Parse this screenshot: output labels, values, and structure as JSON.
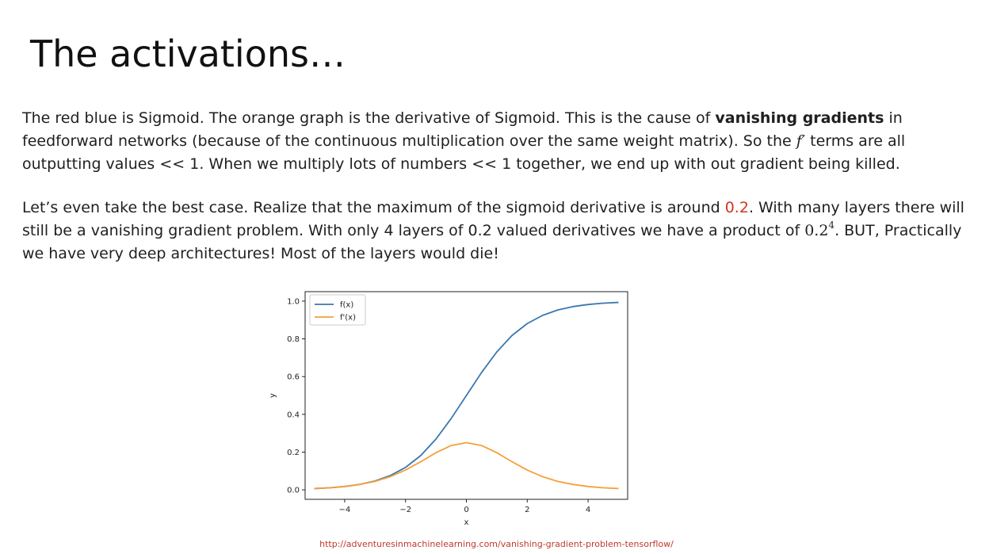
{
  "slide": {
    "title": "The activations…",
    "paragraph1": {
      "t1": "The red blue is Sigmoid. The orange graph is the derivative of Sigmoid. This is the cause of ",
      "bold": "vanishing gradients",
      "t2": " in feedforward networks (because of the continuous multiplication over the same weight matrix). So the ",
      "math": "f′",
      "t3": " terms are all outputting values << 1. When we multiply lots of numbers << 1 together, we end up with out gradient being killed."
    },
    "paragraph2": {
      "t1": "Let’s even take the best case. Realize that the maximum of the sigmoid derivative is around ",
      "highlight": "0.2",
      "t2": ". With many layers there will still be a vanishing gradient problem. With only 4 layers of 0.2 valued derivatives we have a product of ",
      "math_base": "0.2",
      "math_exp": "4",
      "t3": ". BUT, Practically we have very deep architectures! Most of the layers would die!"
    },
    "source_link": "http://adventuresinmachinelearning.com/vanishing-gradient-problem-tensorflow/",
    "colors": {
      "text": "#1f1f1f",
      "accent": "#d0361d",
      "link": "#c0392b",
      "series_sigmoid": "#3a78ae",
      "series_derivative": "#f5a03c"
    }
  },
  "chart_data": {
    "type": "line",
    "xlabel": "x",
    "ylabel": "y",
    "xlim": [
      -5.3,
      5.3
    ],
    "ylim": [
      -0.05,
      1.05
    ],
    "xticks": [
      -4,
      -2,
      0,
      2,
      4
    ],
    "xtick_labels": [
      "−4",
      "−2",
      "0",
      "2",
      "4"
    ],
    "yticks": [
      0.0,
      0.2,
      0.4,
      0.6,
      0.8,
      1.0
    ],
    "ytick_labels": [
      "0.0",
      "0.2",
      "0.4",
      "0.6",
      "0.8",
      "1.0"
    ],
    "grid": false,
    "legend_position": "top-left",
    "x": [
      -5,
      -4.5,
      -4,
      -3.5,
      -3,
      -2.5,
      -2,
      -1.5,
      -1,
      -0.5,
      0,
      0.5,
      1,
      1.5,
      2,
      2.5,
      3,
      3.5,
      4,
      4.5,
      5
    ],
    "series": [
      {
        "name": "f(x)",
        "color": "#3a78ae",
        "values": [
          0.007,
          0.011,
          0.018,
          0.029,
          0.047,
          0.076,
          0.119,
          0.182,
          0.269,
          0.378,
          0.5,
          0.622,
          0.731,
          0.818,
          0.881,
          0.924,
          0.953,
          0.971,
          0.982,
          0.989,
          0.993
        ]
      },
      {
        "name": "f'(x)",
        "color": "#f5a03c",
        "values": [
          0.007,
          0.011,
          0.018,
          0.029,
          0.045,
          0.07,
          0.105,
          0.149,
          0.197,
          0.235,
          0.25,
          0.235,
          0.197,
          0.149,
          0.105,
          0.07,
          0.045,
          0.029,
          0.018,
          0.011,
          0.007
        ]
      }
    ]
  }
}
